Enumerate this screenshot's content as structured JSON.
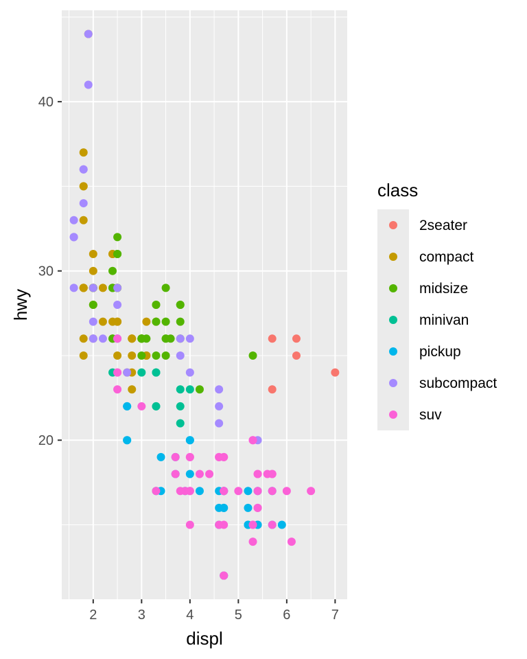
{
  "chart_data": {
    "type": "scatter",
    "title": "",
    "xlabel": "displ",
    "ylabel": "hwy",
    "xlim": [
      1.35,
      7.25
    ],
    "ylim": [
      10.6,
      45.4
    ],
    "x_ticks": [
      2,
      3,
      4,
      5,
      6,
      7
    ],
    "x_tick_labels": [
      "2",
      "3",
      "4",
      "5",
      "6",
      "7"
    ],
    "y_ticks": [
      20,
      30,
      40
    ],
    "y_tick_labels": [
      "20",
      "30",
      "40"
    ],
    "grid": true,
    "panel_background": "#ebebeb",
    "legend": {
      "title": "class",
      "placement": "right"
    },
    "series": [
      {
        "name": "2seater",
        "color": "#F8766D",
        "points": [
          [
            5.7,
            26
          ],
          [
            5.7,
            23
          ],
          [
            6.2,
            26
          ],
          [
            6.2,
            25
          ],
          [
            7.0,
            24
          ]
        ]
      },
      {
        "name": "compact",
        "color": "#C49A00",
        "points": [
          [
            1.8,
            29
          ],
          [
            1.8,
            29
          ],
          [
            2.0,
            31
          ],
          [
            2.0,
            30
          ],
          [
            2.8,
            26
          ],
          [
            2.8,
            26
          ],
          [
            3.1,
            27
          ],
          [
            1.8,
            26
          ],
          [
            1.8,
            25
          ],
          [
            2.0,
            28
          ],
          [
            2.0,
            29
          ],
          [
            2.8,
            26
          ],
          [
            2.8,
            25
          ],
          [
            3.1,
            25
          ],
          [
            3.1,
            25
          ],
          [
            2.2,
            27
          ],
          [
            2.2,
            29
          ],
          [
            2.4,
            31
          ],
          [
            2.4,
            31
          ],
          [
            3.0,
            26
          ],
          [
            3.0,
            26
          ],
          [
            3.3,
            27
          ],
          [
            1.8,
            33
          ],
          [
            1.8,
            35
          ],
          [
            1.8,
            37
          ],
          [
            1.8,
            35
          ],
          [
            1.8,
            29
          ],
          [
            1.8,
            29
          ],
          [
            2.0,
            29
          ],
          [
            2.0,
            29
          ],
          [
            2.8,
            23
          ],
          [
            2.8,
            24
          ],
          [
            1.9,
            44
          ],
          [
            2.0,
            29
          ],
          [
            2.0,
            26
          ],
          [
            2.5,
            29
          ],
          [
            2.5,
            29
          ],
          [
            2.5,
            27
          ],
          [
            2.4,
            27
          ],
          [
            2.5,
            27
          ],
          [
            2.5,
            25
          ],
          [
            2.7,
            24
          ]
        ]
      },
      {
        "name": "midsize",
        "color": "#53B400",
        "points": [
          [
            2.4,
            26
          ],
          [
            2.4,
            26
          ],
          [
            3.1,
            26
          ],
          [
            3.5,
            29
          ],
          [
            3.6,
            26
          ],
          [
            2.4,
            30
          ],
          [
            3.0,
            26
          ],
          [
            3.3,
            28
          ],
          [
            3.3,
            27
          ],
          [
            3.3,
            28
          ],
          [
            3.5,
            26
          ],
          [
            3.8,
            28
          ],
          [
            3.8,
            27
          ],
          [
            3.8,
            26
          ],
          [
            3.0,
            26
          ],
          [
            3.5,
            25
          ],
          [
            3.5,
            27
          ],
          [
            2.5,
            32
          ],
          [
            2.5,
            31
          ],
          [
            3.0,
            26
          ],
          [
            3.0,
            25
          ],
          [
            3.5,
            26
          ],
          [
            2.4,
            29
          ],
          [
            2.4,
            29
          ],
          [
            2.4,
            29
          ],
          [
            2.5,
            29
          ],
          [
            2.5,
            31
          ],
          [
            2.5,
            29
          ],
          [
            3.0,
            26
          ],
          [
            3.0,
            26
          ],
          [
            3.3,
            25
          ],
          [
            3.8,
            28
          ],
          [
            2.0,
            29
          ],
          [
            2.0,
            29
          ],
          [
            2.0,
            28
          ],
          [
            5.3,
            25
          ],
          [
            4.2,
            23
          ]
        ]
      },
      {
        "name": "minivan",
        "color": "#00C094",
        "points": [
          [
            2.4,
            24
          ],
          [
            3.0,
            24
          ],
          [
            3.3,
            22
          ],
          [
            3.3,
            22
          ],
          [
            3.3,
            24
          ],
          [
            3.3,
            24
          ],
          [
            3.3,
            17
          ],
          [
            3.8,
            22
          ],
          [
            3.8,
            21
          ],
          [
            3.8,
            23
          ],
          [
            4.0,
            23
          ]
        ]
      },
      {
        "name": "pickup",
        "color": "#00B6EB",
        "points": [
          [
            2.7,
            20
          ],
          [
            2.7,
            22
          ],
          [
            3.4,
            19
          ],
          [
            3.4,
            17
          ],
          [
            4.0,
            20
          ],
          [
            4.0,
            18
          ],
          [
            4.7,
            17
          ],
          [
            4.7,
            16
          ],
          [
            4.7,
            12
          ],
          [
            5.2,
            16
          ],
          [
            5.2,
            15
          ],
          [
            5.7,
            17
          ],
          [
            5.9,
            15
          ],
          [
            4.6,
            16
          ],
          [
            4.6,
            17
          ],
          [
            5.4,
            15
          ],
          [
            4.2,
            17
          ],
          [
            4.7,
            17
          ],
          [
            4.7,
            16
          ],
          [
            5.2,
            15
          ],
          [
            3.7,
            18
          ],
          [
            3.7,
            19
          ],
          [
            3.9,
            17
          ],
          [
            4.7,
            12
          ],
          [
            4.7,
            17
          ],
          [
            5.2,
            17
          ],
          [
            5.7,
            15
          ],
          [
            4.6,
            15
          ],
          [
            5.4,
            15
          ],
          [
            5.4,
            17
          ],
          [
            2.7,
            20
          ],
          [
            2.7,
            22
          ],
          [
            4.0,
            20
          ]
        ]
      },
      {
        "name": "subcompact",
        "color": "#A58AFF",
        "points": [
          [
            1.6,
            33
          ],
          [
            1.6,
            32
          ],
          [
            1.6,
            32
          ],
          [
            1.6,
            29
          ],
          [
            1.6,
            32
          ],
          [
            1.8,
            34
          ],
          [
            1.8,
            36
          ],
          [
            1.8,
            36
          ],
          [
            2.0,
            29
          ],
          [
            2.0,
            26
          ],
          [
            1.9,
            44
          ],
          [
            1.9,
            41
          ],
          [
            2.0,
            27
          ],
          [
            2.0,
            26
          ],
          [
            2.5,
            28
          ],
          [
            2.5,
            29
          ],
          [
            2.5,
            26
          ],
          [
            2.2,
            26
          ],
          [
            3.8,
            26
          ],
          [
            3.8,
            25
          ],
          [
            4.0,
            26
          ],
          [
            4.0,
            24
          ],
          [
            4.6,
            21
          ],
          [
            4.6,
            22
          ],
          [
            4.6,
            23
          ],
          [
            5.4,
            20
          ],
          [
            2.7,
            24
          ],
          [
            2.5,
            26
          ],
          [
            2.5,
            26
          ]
        ]
      },
      {
        "name": "suv",
        "color": "#FB61D7",
        "points": [
          [
            5.3,
            20
          ],
          [
            5.3,
            15
          ],
          [
            5.3,
            20
          ],
          [
            5.7,
            17
          ],
          [
            6.0,
            17
          ],
          [
            5.3,
            14
          ],
          [
            5.3,
            15
          ],
          [
            5.7,
            15
          ],
          [
            6.5,
            17
          ],
          [
            3.7,
            19
          ],
          [
            3.7,
            18
          ],
          [
            3.9,
            17
          ],
          [
            4.0,
            19
          ],
          [
            4.0,
            19
          ],
          [
            4.7,
            17
          ],
          [
            4.7,
            19
          ],
          [
            4.7,
            17
          ],
          [
            4.7,
            15
          ],
          [
            5.7,
            18
          ],
          [
            6.1,
            14
          ],
          [
            4.7,
            12
          ],
          [
            4.7,
            12
          ],
          [
            5.4,
            18
          ],
          [
            5.4,
            18
          ],
          [
            5.7,
            18
          ],
          [
            4.0,
            15
          ],
          [
            4.0,
            17
          ],
          [
            4.2,
            18
          ],
          [
            4.4,
            18
          ],
          [
            4.6,
            19
          ],
          [
            4.6,
            15
          ],
          [
            5.4,
            16
          ],
          [
            5.4,
            17
          ],
          [
            2.5,
            23
          ],
          [
            2.5,
            24
          ],
          [
            3.0,
            22
          ],
          [
            3.3,
            17
          ],
          [
            3.8,
            17
          ],
          [
            4.6,
            19
          ],
          [
            5.0,
            17
          ],
          [
            5.4,
            16
          ],
          [
            4.0,
            17
          ],
          [
            4.7,
            17
          ],
          [
            4.7,
            19
          ],
          [
            5.6,
            18
          ],
          [
            2.5,
            24
          ],
          [
            2.5,
            26
          ]
        ]
      }
    ]
  }
}
